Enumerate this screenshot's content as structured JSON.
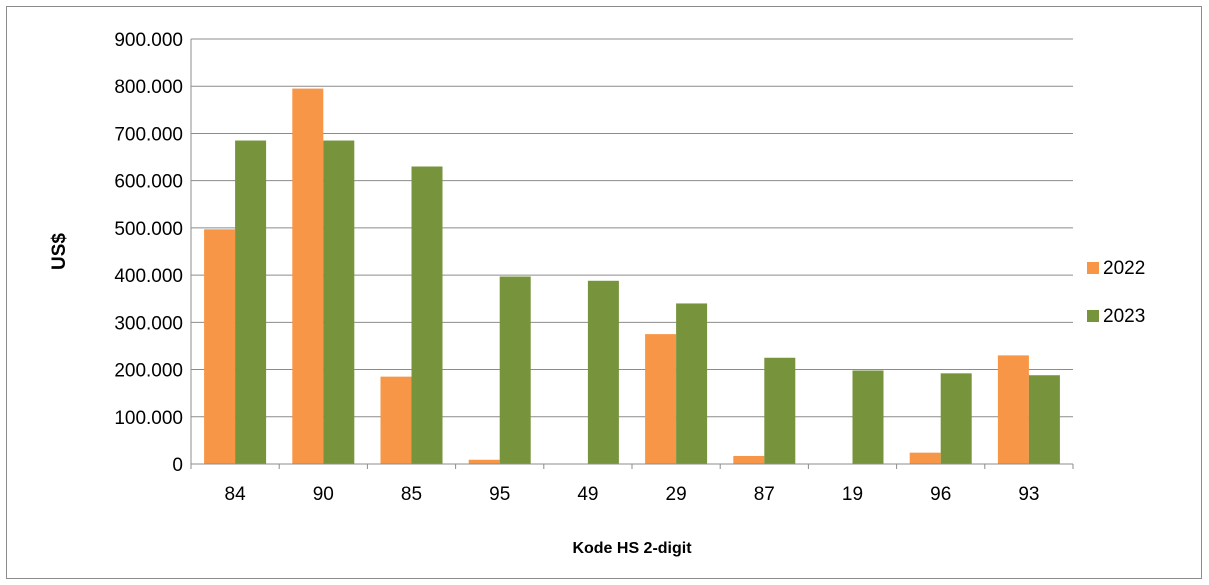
{
  "chart_data": {
    "type": "bar",
    "title": "",
    "xlabel": "Kode HS 2-digit",
    "ylabel": "US$",
    "categories": [
      "84",
      "90",
      "85",
      "95",
      "49",
      "29",
      "87",
      "19",
      "96",
      "93"
    ],
    "series": [
      {
        "name": "2022",
        "color": "#f79646",
        "values": [
          497000,
          795000,
          185000,
          9000,
          0,
          275000,
          17000,
          0,
          24000,
          230000
        ]
      },
      {
        "name": "2023",
        "color": "#77933c",
        "values": [
          685000,
          685000,
          630000,
          397000,
          388000,
          340000,
          225000,
          198000,
          192000,
          188000
        ]
      }
    ],
    "ylim": [
      0,
      900000
    ],
    "yticks": [
      0,
      100000,
      200000,
      300000,
      400000,
      500000,
      600000,
      700000,
      800000,
      900000
    ],
    "ytick_labels": [
      "0",
      "100.000",
      "200.000",
      "300.000",
      "400.000",
      "500.000",
      "600.000",
      "700.000",
      "800.000",
      "900.000"
    ],
    "grid": true,
    "legend_position": "right"
  }
}
